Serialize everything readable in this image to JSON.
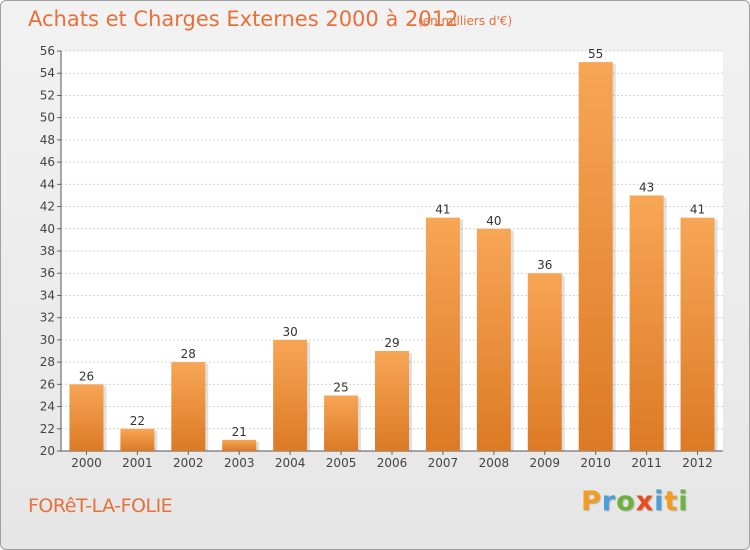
{
  "header": {
    "title": "Achats et Charges Externes 2000 à 2012",
    "subtitle": "(en milliers d'€)"
  },
  "footer": {
    "commune": "FORêT-LA-FOLIE",
    "brand": "Proxiti"
  },
  "colors": {
    "accent": "#e8703a",
    "bar_light": "#f7a656",
    "bar_dark": "#dc7a25",
    "brand_letters": [
      "#f39c1e",
      "#4a9fd8",
      "#6bb33a",
      "#e84b1c",
      "#4a9fd8",
      "#f39c1e",
      "#6bb33a"
    ]
  },
  "chart_data": {
    "type": "bar",
    "categories": [
      "2000",
      "2001",
      "2002",
      "2003",
      "2004",
      "2005",
      "2006",
      "2007",
      "2008",
      "2009",
      "2010",
      "2011",
      "2012"
    ],
    "values": [
      26,
      22,
      28,
      21,
      30,
      25,
      29,
      41,
      40,
      36,
      55,
      43,
      41
    ],
    "ylim": [
      20,
      56
    ],
    "yticks": [
      20,
      22,
      24,
      26,
      28,
      30,
      32,
      34,
      36,
      38,
      40,
      42,
      44,
      46,
      48,
      50,
      52,
      54,
      56
    ],
    "grid": true
  }
}
